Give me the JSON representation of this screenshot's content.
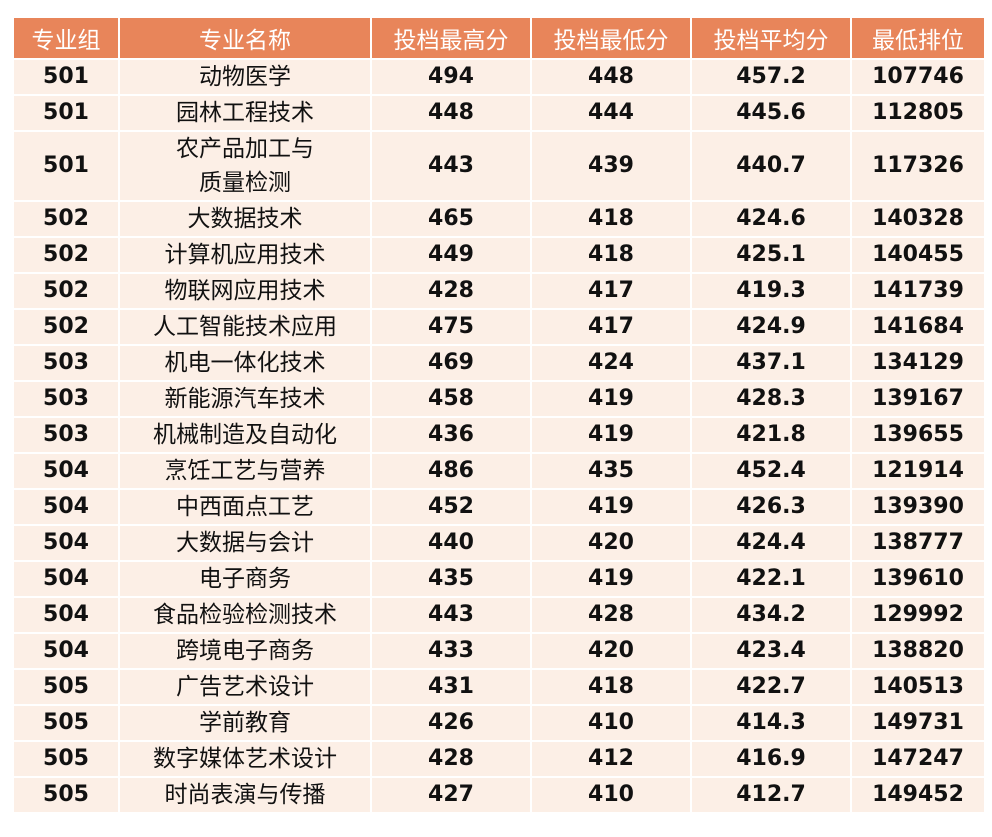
{
  "table": {
    "header": [
      "专业组",
      "专业名称",
      "投档最高分",
      "投档最低分",
      "投档平均分",
      "最低排位"
    ],
    "rows": [
      [
        "501",
        "动物医学",
        "494",
        "448",
        "457.2",
        "107746"
      ],
      [
        "501",
        "园林工程技术",
        "448",
        "444",
        "445.6",
        "112805"
      ],
      [
        "501",
        "农产品加工与\n质量检测",
        "443",
        "439",
        "440.7",
        "117326"
      ],
      [
        "502",
        "大数据技术",
        "465",
        "418",
        "424.6",
        "140328"
      ],
      [
        "502",
        "计算机应用技术",
        "449",
        "418",
        "425.1",
        "140455"
      ],
      [
        "502",
        "物联网应用技术",
        "428",
        "417",
        "419.3",
        "141739"
      ],
      [
        "502",
        "人工智能技术应用",
        "475",
        "417",
        "424.9",
        "141684"
      ],
      [
        "503",
        "机电一体化技术",
        "469",
        "424",
        "437.1",
        "134129"
      ],
      [
        "503",
        "新能源汽车技术",
        "458",
        "419",
        "428.3",
        "139167"
      ],
      [
        "503",
        "机械制造及自动化",
        "436",
        "419",
        "421.8",
        "139655"
      ],
      [
        "504",
        "烹饪工艺与营养",
        "486",
        "435",
        "452.4",
        "121914"
      ],
      [
        "504",
        "中西面点工艺",
        "452",
        "419",
        "426.3",
        "139390"
      ],
      [
        "504",
        "大数据与会计",
        "440",
        "420",
        "424.4",
        "138777"
      ],
      [
        "504",
        "电子商务",
        "435",
        "419",
        "422.1",
        "139610"
      ],
      [
        "504",
        "食品检验检测技术",
        "443",
        "428",
        "434.2",
        "129992"
      ],
      [
        "504",
        "跨境电子商务",
        "433",
        "420",
        "423.4",
        "138820"
      ],
      [
        "505",
        "广告艺术设计",
        "431",
        "418",
        "422.7",
        "140513"
      ],
      [
        "505",
        "学前教育",
        "426",
        "410",
        "414.3",
        "149731"
      ],
      [
        "505",
        "数字媒体艺术设计",
        "428",
        "412",
        "416.9",
        "147247"
      ],
      [
        "505",
        "时尚表演与传播",
        "427",
        "410",
        "412.7",
        "149452"
      ]
    ]
  }
}
